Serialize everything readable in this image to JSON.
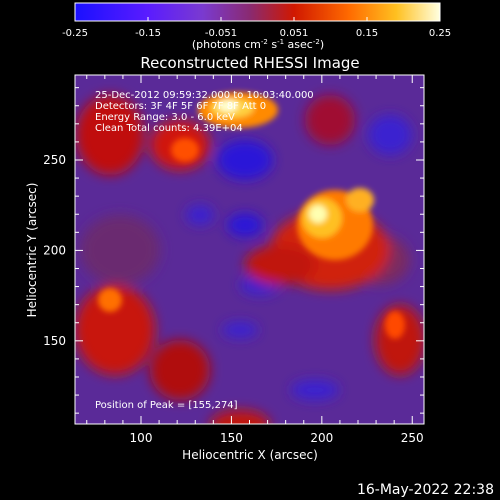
{
  "colorbar": {
    "ticks": [
      "-0.25",
      "-0.15",
      "-0.051",
      "0.051",
      "0.15",
      "0.25"
    ],
    "units_text": "(photons cm",
    "units_exp1": "-2",
    "units_mid": " s",
    "units_exp2": "-1",
    "units_mid2": " asec",
    "units_exp3": "-2",
    "units_close": ")",
    "colormap": [
      "#1020ff",
      "#3b18ff",
      "#6a14ff",
      "#8b3fc0",
      "#a23a7a",
      "#c02010",
      "#ff2a00",
      "#ff7a00",
      "#ffc000",
      "#fff07a",
      "#ffffe8"
    ]
  },
  "plot": {
    "title": "Reconstructed RHESSI Image",
    "xlabel": "Heliocentric X (arcsec)",
    "ylabel": "Heliocentric Y (arcsec)",
    "xticks": [
      "100",
      "150",
      "200",
      "250"
    ],
    "yticks": [
      "250",
      "200",
      "150"
    ],
    "info_lines": [
      "25-Dec-2012 09:59:32.000 to 10:03:40.000",
      "Detectors: 3F 4F 5F 6F 7F 8F Att 0",
      "Energy Range: 3.0 - 6.0 keV",
      "Clean     Total counts: 4.39E+04"
    ],
    "peak_text": "Position of Peak = [155,274]"
  },
  "footer": {
    "timestamp": "16-May-2022 22:38"
  }
}
